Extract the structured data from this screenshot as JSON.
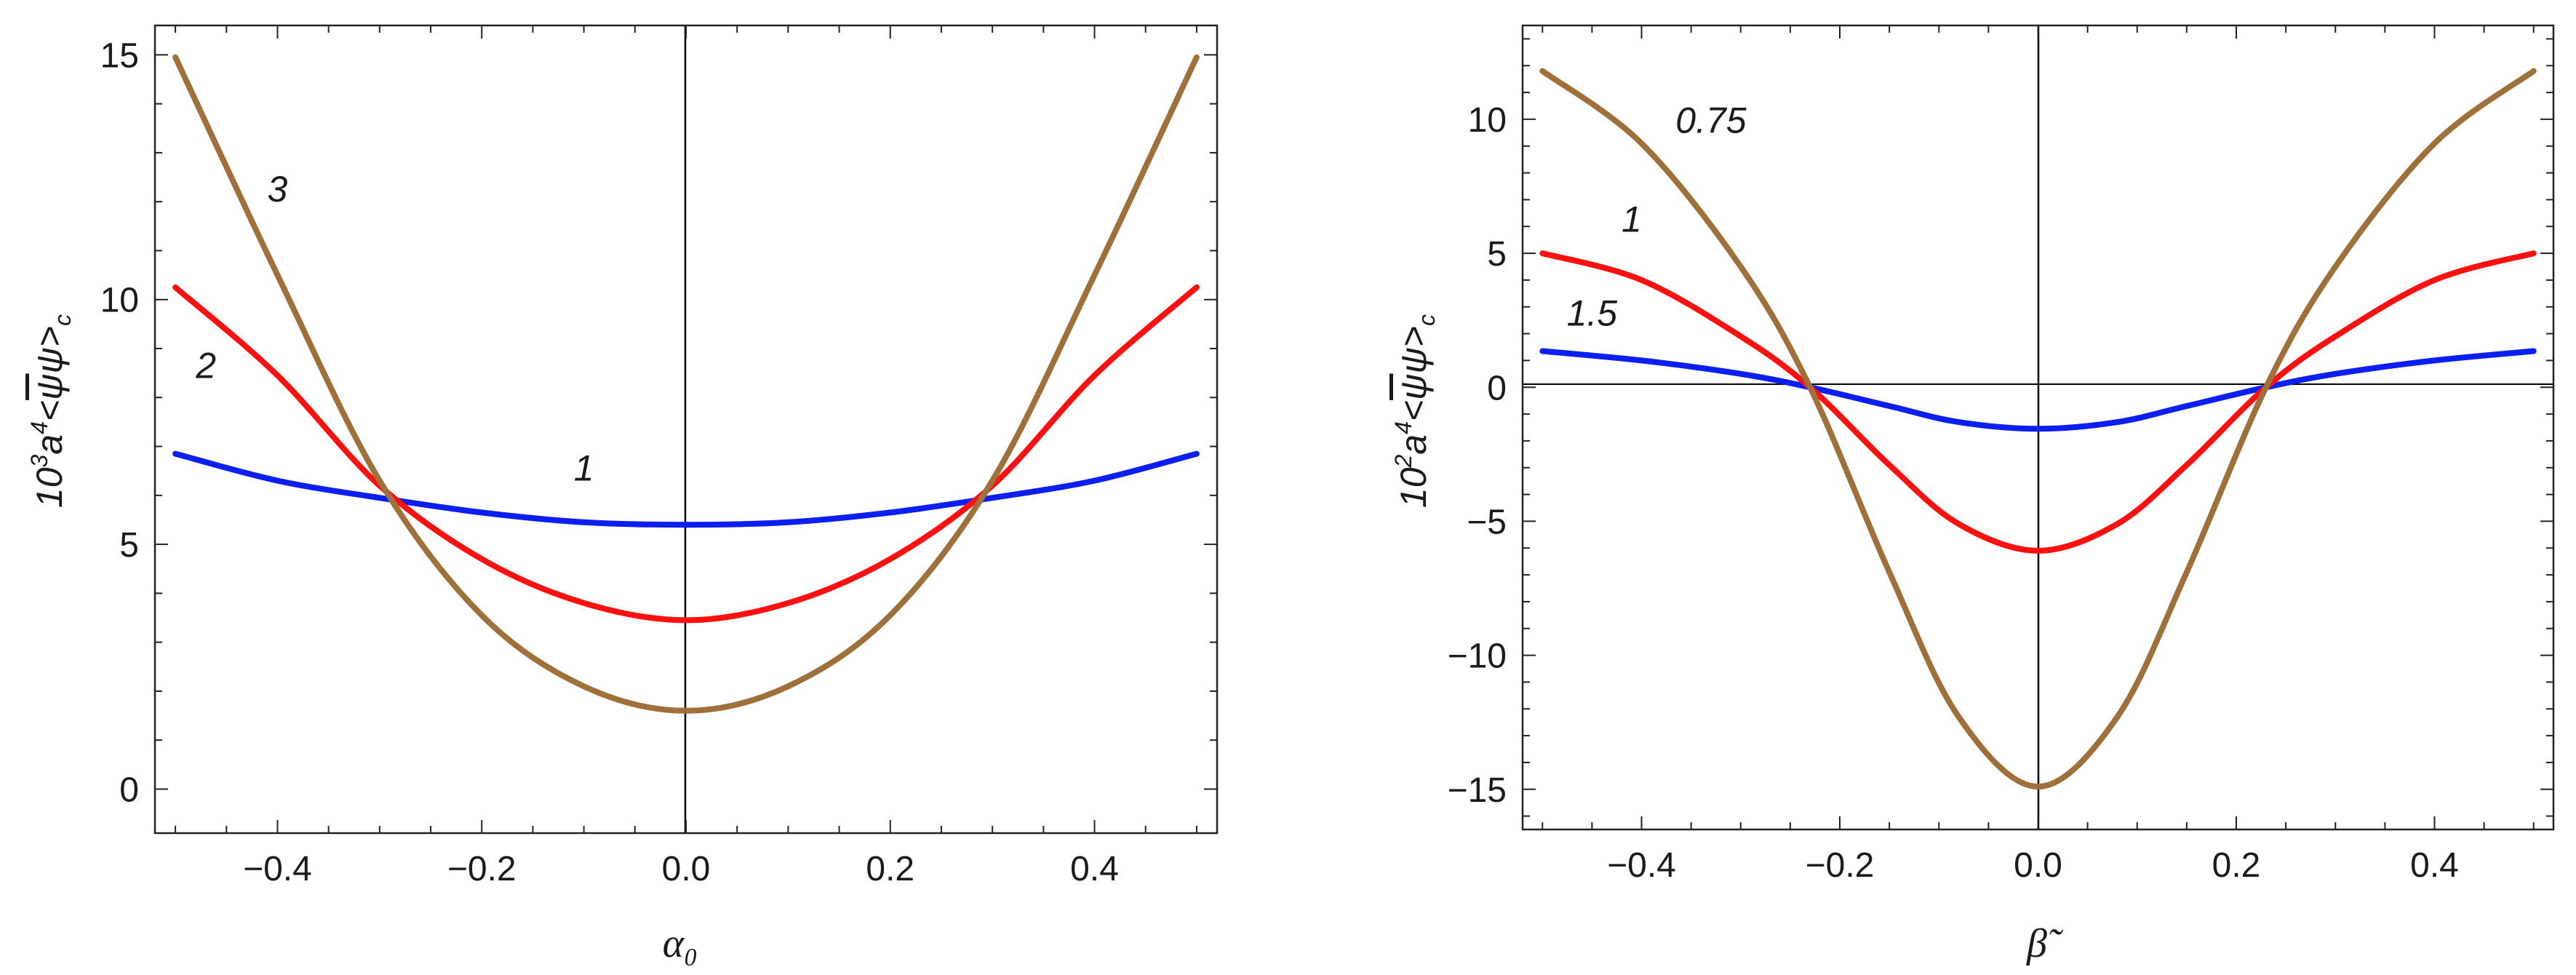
{
  "chart_data": [
    {
      "type": "line",
      "xlabel": "α₀",
      "ylabel_parts": {
        "coef": "10",
        "exp1": "3",
        "a": "a",
        "exp2": "4",
        "lt": "<",
        "psibar": "ψ",
        "psi": "ψ",
        "gt": ">",
        "sub": "c"
      },
      "xlim": [
        -0.52,
        0.52
      ],
      "ylim": [
        -0.9,
        15.6
      ],
      "xticks": [
        -0.4,
        -0.2,
        0.0,
        0.2,
        0.4
      ],
      "xtick_labels": [
        "−0.4",
        "−0.2",
        "0.0",
        "0.2",
        "0.4"
      ],
      "yticks": [
        0,
        5,
        10,
        15
      ],
      "ytick_labels": [
        "0",
        "5",
        "10",
        "15"
      ],
      "vline_x": 0,
      "series": [
        {
          "name": "1",
          "color": "#0a1ff0",
          "x": [
            -0.5,
            -0.4,
            -0.3,
            -0.2,
            -0.1,
            0.0,
            0.1,
            0.2,
            0.3,
            0.4,
            0.5
          ],
          "values": [
            6.85,
            6.3,
            5.95,
            5.65,
            5.45,
            5.4,
            5.45,
            5.65,
            5.95,
            6.3,
            6.85
          ]
        },
        {
          "name": "2",
          "color": "#ff1010",
          "x": [
            -0.5,
            -0.4,
            -0.3,
            -0.2,
            -0.1,
            0.0,
            0.1,
            0.2,
            0.3,
            0.4,
            0.5
          ],
          "values": [
            10.25,
            8.45,
            6.2,
            4.7,
            3.8,
            3.45,
            3.8,
            4.7,
            6.2,
            8.45,
            10.25
          ]
        },
        {
          "name": "3",
          "color": "#a0703a",
          "x": [
            -0.5,
            -0.4,
            -0.3,
            -0.2,
            -0.1,
            0.0,
            0.1,
            0.2,
            0.3,
            0.4,
            0.5
          ],
          "values": [
            14.95,
            10.5,
            6.3,
            3.55,
            2.1,
            1.6,
            2.1,
            3.55,
            6.3,
            10.5,
            14.95
          ]
        }
      ],
      "annotations": [
        {
          "text": "3",
          "x": -0.4,
          "y": 12.0
        },
        {
          "text": "2",
          "x": -0.47,
          "y": 8.4
        },
        {
          "text": "1",
          "x": -0.1,
          "y": 6.3
        }
      ]
    },
    {
      "type": "line",
      "xlabel": "β̃",
      "ylabel_parts": {
        "coef": "10",
        "exp1": "2",
        "a": "a",
        "exp2": "4",
        "lt": "<",
        "psibar": "ψ",
        "psi": "ψ",
        "gt": ">",
        "sub": "c"
      },
      "xlim": [
        -0.52,
        0.52
      ],
      "ylim": [
        -16.5,
        13.5
      ],
      "xticks": [
        -0.4,
        -0.2,
        0.0,
        0.2,
        0.4
      ],
      "xtick_labels": [
        "−0.4",
        "−0.2",
        "0.0",
        "0.2",
        "0.4"
      ],
      "yticks": [
        -15,
        -10,
        -5,
        0,
        5,
        10
      ],
      "ytick_labels": [
        "−15",
        "−10",
        "−5",
        "0",
        "5",
        "10"
      ],
      "vline_x": 0,
      "hline_y": 0,
      "series": [
        {
          "name": "1.5",
          "color": "#0a1ff0",
          "x": [
            -0.5,
            -0.4,
            -0.3,
            -0.23,
            -0.15,
            -0.08,
            0.0,
            0.08,
            0.15,
            0.23,
            0.3,
            0.4,
            0.5
          ],
          "values": [
            1.35,
            1.0,
            0.5,
            0.0,
            -0.7,
            -1.3,
            -1.55,
            -1.3,
            -0.7,
            0.0,
            0.5,
            1.0,
            1.35
          ]
        },
        {
          "name": "1",
          "color": "#ff1010",
          "x": [
            -0.5,
            -0.4,
            -0.3,
            -0.23,
            -0.15,
            -0.08,
            0.0,
            0.08,
            0.15,
            0.23,
            0.3,
            0.4,
            0.5
          ],
          "values": [
            5.0,
            4.0,
            1.9,
            0.0,
            -2.9,
            -5.1,
            -6.1,
            -5.1,
            -2.9,
            0.0,
            1.9,
            4.0,
            5.0
          ]
        },
        {
          "name": "0.75",
          "color": "#a0703a",
          "x": [
            -0.5,
            -0.4,
            -0.3,
            -0.23,
            -0.15,
            -0.08,
            0.0,
            0.08,
            0.15,
            0.23,
            0.3,
            0.4,
            0.5
          ],
          "values": [
            11.8,
            9.1,
            4.5,
            0.0,
            -6.9,
            -12.3,
            -14.9,
            -12.3,
            -6.9,
            0.0,
            4.5,
            9.1,
            11.8
          ]
        }
      ],
      "annotations": [
        {
          "text": "0.75",
          "x": -0.33,
          "y": 9.5
        },
        {
          "text": "1",
          "x": -0.41,
          "y": 5.8
        },
        {
          "text": "1.5",
          "x": -0.45,
          "y": 2.3
        }
      ]
    }
  ]
}
